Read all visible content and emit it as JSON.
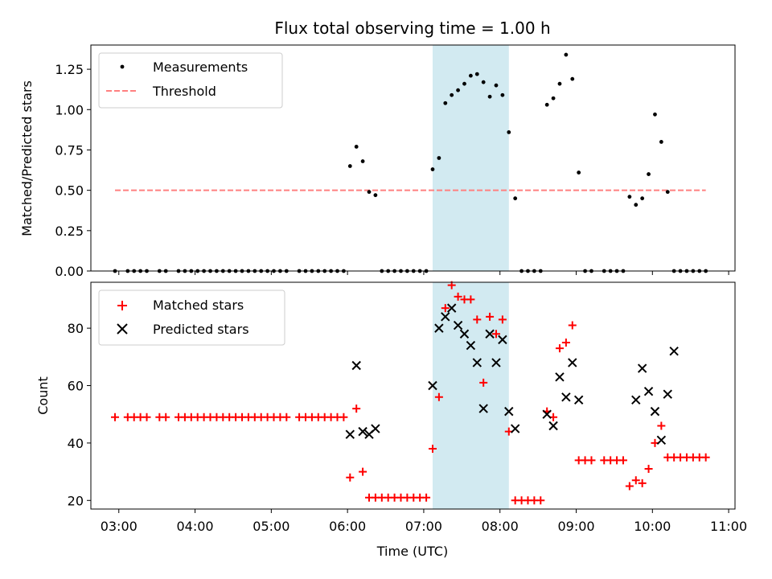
{
  "chart_data": {
    "title": "Flux total observing time = 1.00 h",
    "xlabel": "Time (UTC)",
    "xticks": [
      "03:00",
      "04:00",
      "05:00",
      "06:00",
      "07:00",
      "08:00",
      "09:00",
      "10:00",
      "11:00"
    ],
    "xlim": [
      "02:38",
      "11:05"
    ],
    "shaded_interval": [
      "07:07",
      "08:07"
    ],
    "shade_color": "#add8e6",
    "panels": [
      {
        "type": "scatter",
        "ylabel": "Matched/Predicted stars",
        "ylim": [
          0,
          1.4
        ],
        "yticks": [
          "0.00",
          "0.25",
          "0.50",
          "0.75",
          "1.00",
          "1.25"
        ],
        "legend": "upper-left",
        "series": [
          {
            "name": "Measurements",
            "marker": "dot",
            "color": "#000000",
            "x": [
              "02:57",
              "03:07",
              "03:12",
              "03:17",
              "03:22",
              "03:32",
              "03:37",
              "03:47",
              "03:52",
              "03:57",
              "04:02",
              "04:07",
              "04:12",
              "04:17",
              "04:22",
              "04:27",
              "04:32",
              "04:37",
              "04:42",
              "04:47",
              "04:52",
              "04:57",
              "05:02",
              "05:07",
              "05:12",
              "05:22",
              "05:27",
              "05:32",
              "05:37",
              "05:42",
              "05:47",
              "05:52",
              "05:57",
              "06:02",
              "06:07",
              "06:12",
              "06:17",
              "06:22",
              "06:27",
              "06:32",
              "06:37",
              "06:42",
              "06:47",
              "06:52",
              "06:57",
              "07:02",
              "07:07",
              "07:12",
              "07:17",
              "07:22",
              "07:27",
              "07:32",
              "07:37",
              "07:42",
              "07:47",
              "07:52",
              "07:57",
              "08:02",
              "08:07",
              "08:12",
              "08:17",
              "08:22",
              "08:27",
              "08:32",
              "08:37",
              "08:42",
              "08:47",
              "08:52",
              "08:57",
              "09:02",
              "09:07",
              "09:12",
              "09:22",
              "09:27",
              "09:32",
              "09:37",
              "09:42",
              "09:47",
              "09:52",
              "09:57",
              "10:02",
              "10:07",
              "10:12",
              "10:17",
              "10:22",
              "10:27",
              "10:32",
              "10:37",
              "10:42"
            ],
            "y": [
              0,
              0,
              0,
              0,
              0,
              0,
              0,
              0,
              0,
              0,
              0,
              0,
              0,
              0,
              0,
              0,
              0,
              0,
              0,
              0,
              0,
              0,
              0,
              0,
              0,
              0,
              0,
              0,
              0,
              0,
              0,
              0,
              0,
              0.65,
              0.77,
              0.68,
              0.49,
              0.47,
              0,
              0,
              0,
              0,
              0,
              0,
              0,
              0,
              0.63,
              0.7,
              1.04,
              1.09,
              1.12,
              1.16,
              1.21,
              1.22,
              1.17,
              1.08,
              1.15,
              1.09,
              0.86,
              0.45,
              0,
              0,
              0,
              0,
              1.03,
              1.07,
              1.16,
              1.34,
              1.19,
              0.61,
              0,
              0,
              0,
              0,
              0,
              0,
              0.46,
              0.41,
              0.45,
              0.6,
              0.97,
              0.8,
              0.49,
              0,
              0,
              0,
              0,
              0,
              0
            ]
          },
          {
            "name": "Threshold",
            "marker": "dashed-line",
            "color": "#ff8080",
            "x": [
              "02:57",
              "10:42"
            ],
            "y": [
              0.5,
              0.5
            ]
          }
        ]
      },
      {
        "type": "scatter",
        "ylabel": "Count",
        "ylim": [
          17,
          96
        ],
        "yticks": [
          "20",
          "40",
          "60",
          "80"
        ],
        "legend": "upper-left",
        "series": [
          {
            "name": "Matched stars",
            "marker": "plus",
            "color": "#ff0000",
            "x": [
              "02:57",
              "03:07",
              "03:12",
              "03:17",
              "03:22",
              "03:32",
              "03:37",
              "03:47",
              "03:52",
              "03:57",
              "04:02",
              "04:07",
              "04:12",
              "04:17",
              "04:22",
              "04:27",
              "04:32",
              "04:37",
              "04:42",
              "04:47",
              "04:52",
              "04:57",
              "05:02",
              "05:07",
              "05:12",
              "05:22",
              "05:27",
              "05:32",
              "05:37",
              "05:42",
              "05:47",
              "05:52",
              "05:57",
              "06:02",
              "06:07",
              "06:12",
              "06:17",
              "06:22",
              "06:27",
              "06:32",
              "06:37",
              "06:42",
              "06:47",
              "06:52",
              "06:57",
              "07:02",
              "07:07",
              "07:12",
              "07:17",
              "07:22",
              "07:27",
              "07:32",
              "07:37",
              "07:42",
              "07:47",
              "07:52",
              "07:57",
              "08:02",
              "08:07",
              "08:12",
              "08:17",
              "08:22",
              "08:27",
              "08:32",
              "08:37",
              "08:42",
              "08:47",
              "08:52",
              "08:57",
              "09:02",
              "09:07",
              "09:12",
              "09:22",
              "09:27",
              "09:32",
              "09:37",
              "09:42",
              "09:47",
              "09:52",
              "09:57",
              "10:02",
              "10:07",
              "10:12",
              "10:17",
              "10:22",
              "10:27",
              "10:32",
              "10:37",
              "10:42"
            ],
            "y": [
              49,
              49,
              49,
              49,
              49,
              49,
              49,
              49,
              49,
              49,
              49,
              49,
              49,
              49,
              49,
              49,
              49,
              49,
              49,
              49,
              49,
              49,
              49,
              49,
              49,
              49,
              49,
              49,
              49,
              49,
              49,
              49,
              49,
              28,
              52,
              30,
              21,
              21,
              21,
              21,
              21,
              21,
              21,
              21,
              21,
              21,
              38,
              56,
              87,
              95,
              91,
              90,
              90,
              83,
              61,
              84,
              78,
              83,
              44,
              20,
              20,
              20,
              20,
              20,
              51,
              49,
              73,
              75,
              81,
              34,
              34,
              34,
              34,
              34,
              34,
              34,
              25,
              27,
              26,
              31,
              40,
              46,
              35,
              35,
              35,
              35,
              35,
              35,
              35
            ]
          },
          {
            "name": "Predicted stars",
            "marker": "x",
            "color": "#000000",
            "x": [
              "06:02",
              "06:07",
              "06:12",
              "06:17",
              "06:22",
              "07:07",
              "07:12",
              "07:17",
              "07:22",
              "07:27",
              "07:32",
              "07:37",
              "07:42",
              "07:47",
              "07:52",
              "07:57",
              "08:02",
              "08:07",
              "08:12",
              "08:37",
              "08:42",
              "08:47",
              "08:52",
              "08:57",
              "09:02",
              "09:47",
              "09:52",
              "09:57",
              "10:02",
              "10:07",
              "10:12"
            ],
            "y": [
              43,
              67,
              44,
              43,
              45,
              60,
              80,
              84,
              87,
              81,
              78,
              74,
              68,
              52,
              78,
              68,
              76,
              51,
              45,
              50,
              46,
              63,
              56,
              68,
              55,
              55,
              66,
              58,
              51,
              41,
              57
            ]
          }
        ]
      }
    ]
  },
  "extra_predicted": {
    "x": [
      "10:17"
    ],
    "y": [
      72
    ]
  }
}
